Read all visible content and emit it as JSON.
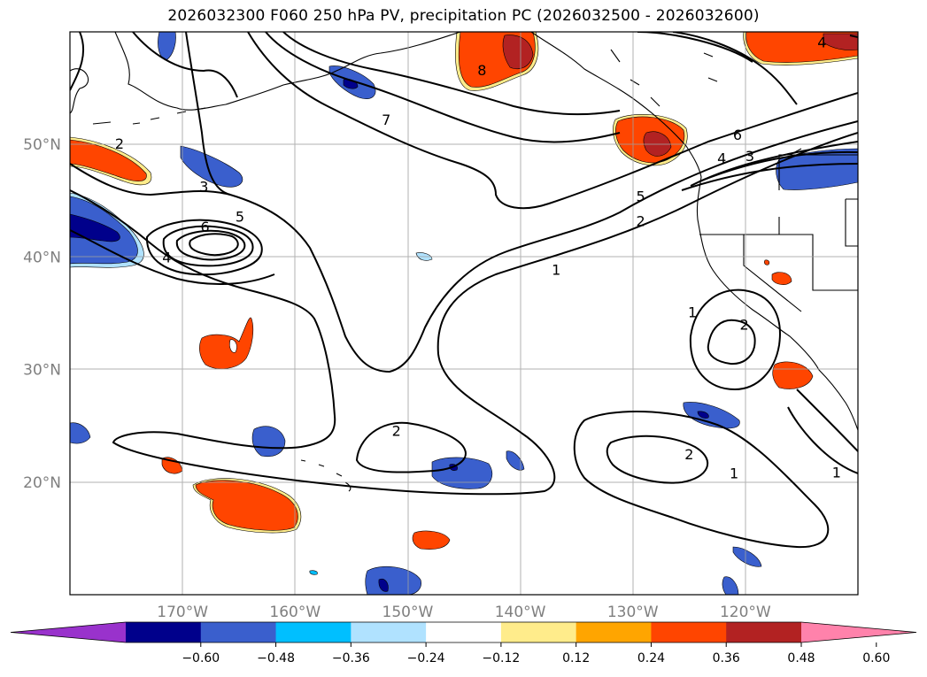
{
  "title": "2026032300 F060 250 hPa PV, precipitation PC (2026032500 - 2026032600)",
  "lat_labels": [
    {
      "value": 50,
      "label": "50°N"
    },
    {
      "value": 40,
      "label": "40°N"
    },
    {
      "value": 30,
      "label": "30°N"
    },
    {
      "value": 20,
      "label": "20°N"
    }
  ],
  "lon_labels": [
    {
      "value": -170,
      "label": "170°W"
    },
    {
      "value": -160,
      "label": "160°W"
    },
    {
      "value": -150,
      "label": "150°W"
    },
    {
      "value": -140,
      "label": "140°W"
    },
    {
      "value": -130,
      "label": "130°W"
    },
    {
      "value": -120,
      "label": "120°W"
    }
  ],
  "extent": {
    "lon_min": -180,
    "lon_max": -110,
    "lat_min": 10,
    "lat_max": 60
  },
  "contour_labels": [
    {
      "text": "8",
      "lon": -143.4,
      "lat": 56.6
    },
    {
      "text": "7",
      "lon": -151.9,
      "lat": 52.2
    },
    {
      "text": "6",
      "lon": -120.7,
      "lat": 50.9
    },
    {
      "text": "5",
      "lon": -164.9,
      "lat": 43.6
    },
    {
      "text": "6",
      "lon": -168.0,
      "lat": 42.7
    },
    {
      "text": "4",
      "lon": -171.4,
      "lat": 40.0
    },
    {
      "text": "3",
      "lon": -168.1,
      "lat": 46.3
    },
    {
      "text": "2",
      "lon": -175.6,
      "lat": 50.1
    },
    {
      "text": "5",
      "lon": -129.3,
      "lat": 45.4
    },
    {
      "text": "4",
      "lon": -122.1,
      "lat": 48.8
    },
    {
      "text": "3",
      "lon": -119.6,
      "lat": 49.0
    },
    {
      "text": "2",
      "lon": -129.3,
      "lat": 43.2
    },
    {
      "text": "1",
      "lon": -136.8,
      "lat": 38.9
    },
    {
      "text": "1",
      "lon": -124.7,
      "lat": 35.1
    },
    {
      "text": "2",
      "lon": -120.1,
      "lat": 34.0
    },
    {
      "text": "2",
      "lon": -151.0,
      "lat": 24.6
    },
    {
      "text": "2",
      "lon": -125.0,
      "lat": 22.5
    },
    {
      "text": "1",
      "lon": -121.0,
      "lat": 20.8
    },
    {
      "text": "1",
      "lon": -111.9,
      "lat": 20.9
    },
    {
      "text": "4",
      "lon": -113.2,
      "lat": 59.1
    }
  ],
  "colorbar": {
    "ticks": [
      "−0.60",
      "−0.48",
      "−0.36",
      "−0.24",
      "−0.12",
      "0.12",
      "0.24",
      "0.36",
      "0.48",
      "0.60"
    ],
    "colors": [
      "#9932cc",
      "#00008b",
      "#3a5fcd",
      "#00bfff",
      "#b0e2ff",
      "#ffffff",
      "#ffec8b",
      "#ffa500",
      "#ff4500",
      "#b22222",
      "#ff82ab"
    ]
  }
}
